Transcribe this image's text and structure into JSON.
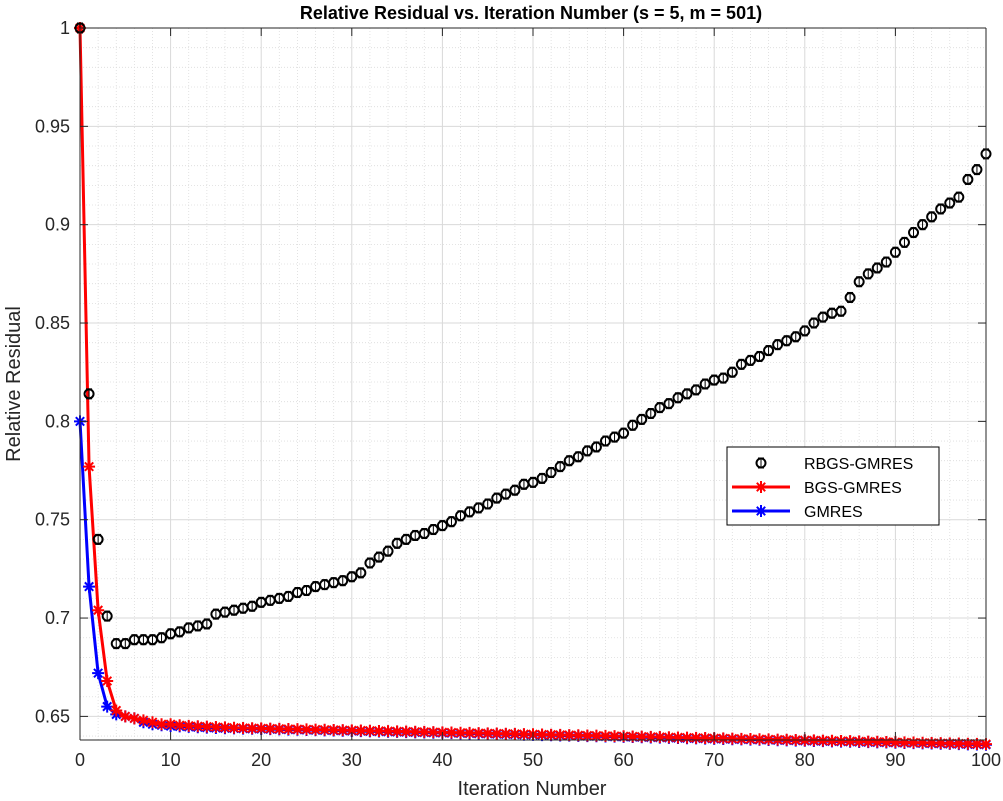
{
  "chart_data": {
    "type": "line",
    "title": "Relative Residual vs. Iteration Number (s = 5, m = 501)",
    "xlabel": "Iteration Number",
    "ylabel": "Relative Residual",
    "xlim": [
      0,
      100
    ],
    "ylim": [
      0.638,
      1.0
    ],
    "x_ticks": [
      0,
      10,
      20,
      30,
      40,
      50,
      60,
      70,
      80,
      90,
      100
    ],
    "x_tick_labels": [
      "0",
      "10",
      "20",
      "30",
      "40",
      "50",
      "60",
      "70",
      "80",
      "90",
      "100"
    ],
    "y_ticks": [
      0.65,
      0.7,
      0.75,
      0.8,
      0.85,
      0.9,
      0.95,
      1.0
    ],
    "y_tick_labels": [
      "0.65",
      "0.7",
      "0.75",
      "0.8",
      "0.85",
      "0.9",
      "0.95",
      "1"
    ],
    "grid": true,
    "legend_position": "center-right",
    "series": [
      {
        "name": "RBGS-GMRES",
        "color": "#000000",
        "style": "errorbar-circle",
        "x": [
          0,
          1,
          2,
          3,
          4,
          5,
          6,
          7,
          8,
          9,
          10,
          11,
          12,
          13,
          14,
          15,
          16,
          17,
          18,
          19,
          20,
          21,
          22,
          23,
          24,
          25,
          26,
          27,
          28,
          29,
          30,
          31,
          32,
          33,
          34,
          35,
          36,
          37,
          38,
          39,
          40,
          41,
          42,
          43,
          44,
          45,
          46,
          47,
          48,
          49,
          50,
          51,
          52,
          53,
          54,
          55,
          56,
          57,
          58,
          59,
          60,
          61,
          62,
          63,
          64,
          65,
          66,
          67,
          68,
          69,
          70,
          71,
          72,
          73,
          74,
          75,
          76,
          77,
          78,
          79,
          80,
          81,
          82,
          83,
          84,
          85,
          86,
          87,
          88,
          89,
          90,
          91,
          92,
          93,
          94,
          95,
          96,
          97,
          98,
          99,
          100
        ],
        "values": [
          1.0,
          0.814,
          0.74,
          0.701,
          0.687,
          0.687,
          0.689,
          0.689,
          0.689,
          0.69,
          0.692,
          0.693,
          0.695,
          0.696,
          0.697,
          0.702,
          0.703,
          0.704,
          0.705,
          0.706,
          0.708,
          0.709,
          0.71,
          0.711,
          0.713,
          0.714,
          0.716,
          0.717,
          0.718,
          0.719,
          0.721,
          0.723,
          0.728,
          0.731,
          0.734,
          0.738,
          0.74,
          0.742,
          0.743,
          0.745,
          0.747,
          0.749,
          0.752,
          0.754,
          0.756,
          0.758,
          0.761,
          0.763,
          0.765,
          0.768,
          0.769,
          0.771,
          0.774,
          0.777,
          0.78,
          0.782,
          0.785,
          0.787,
          0.79,
          0.792,
          0.794,
          0.798,
          0.801,
          0.804,
          0.807,
          0.809,
          0.812,
          0.814,
          0.816,
          0.819,
          0.821,
          0.822,
          0.825,
          0.829,
          0.831,
          0.833,
          0.836,
          0.839,
          0.841,
          0.843,
          0.846,
          0.85,
          0.853,
          0.855,
          0.856,
          0.863,
          0.871,
          0.875,
          0.878,
          0.881,
          0.886,
          0.891,
          0.896,
          0.9,
          0.904,
          0.908,
          0.911,
          0.914,
          0.923,
          0.928,
          0.936
        ]
      },
      {
        "name": "BGS-GMRES",
        "color": "#ff0000",
        "style": "line-star",
        "x": [
          0,
          1,
          2,
          3,
          4,
          5,
          6,
          7,
          8,
          9,
          10,
          11,
          12,
          13,
          14,
          15,
          16,
          17,
          18,
          19,
          20,
          21,
          22,
          23,
          24,
          25,
          26,
          27,
          28,
          29,
          30,
          31,
          32,
          33,
          34,
          35,
          36,
          37,
          38,
          39,
          40,
          41,
          42,
          43,
          44,
          45,
          46,
          47,
          48,
          49,
          50,
          51,
          52,
          53,
          54,
          55,
          56,
          57,
          58,
          59,
          60,
          61,
          62,
          63,
          64,
          65,
          66,
          67,
          68,
          69,
          70,
          71,
          72,
          73,
          74,
          75,
          76,
          77,
          78,
          79,
          80,
          81,
          82,
          83,
          84,
          85,
          86,
          87,
          88,
          89,
          90,
          91,
          92,
          93,
          94,
          95,
          96,
          97,
          98,
          99,
          100
        ],
        "values": [
          1.0,
          0.777,
          0.704,
          0.668,
          0.653,
          0.65,
          0.649,
          0.648,
          0.647,
          0.646,
          0.646,
          0.6455,
          0.6452,
          0.645,
          0.6448,
          0.6446,
          0.6444,
          0.6442,
          0.6441,
          0.644,
          0.6439,
          0.6438,
          0.6437,
          0.6436,
          0.6435,
          0.6434,
          0.6433,
          0.6432,
          0.6431,
          0.643,
          0.6429,
          0.6428,
          0.6427,
          0.6426,
          0.6425,
          0.6424,
          0.6423,
          0.6422,
          0.6421,
          0.642,
          0.6419,
          0.6418,
          0.6417,
          0.6416,
          0.6415,
          0.6414,
          0.6413,
          0.6412,
          0.6411,
          0.641,
          0.6409,
          0.6408,
          0.6407,
          0.6406,
          0.6405,
          0.6404,
          0.6403,
          0.6402,
          0.6401,
          0.64,
          0.6399,
          0.6398,
          0.6397,
          0.6396,
          0.6395,
          0.6394,
          0.6393,
          0.6392,
          0.6391,
          0.639,
          0.6389,
          0.6388,
          0.6387,
          0.6386,
          0.6385,
          0.6384,
          0.6383,
          0.6382,
          0.6381,
          0.638,
          0.6379,
          0.6378,
          0.6377,
          0.6376,
          0.6375,
          0.6374,
          0.6373,
          0.6372,
          0.6371,
          0.637,
          0.6369,
          0.6368,
          0.6367,
          0.6366,
          0.6365,
          0.6364,
          0.6363,
          0.6362,
          0.6361,
          0.636,
          0.6359
        ]
      },
      {
        "name": "GMRES",
        "color": "#0000ff",
        "style": "line-star",
        "x": [
          0,
          1,
          2,
          3,
          4,
          5,
          6,
          7,
          8,
          9,
          10,
          11,
          12,
          13,
          14,
          15,
          16,
          17,
          18,
          19,
          20,
          21,
          22,
          23,
          24,
          25,
          26,
          27,
          28,
          29,
          30,
          31,
          32,
          33,
          34,
          35,
          36,
          37,
          38,
          39,
          40,
          41,
          42,
          43,
          44,
          45,
          46,
          47,
          48,
          49,
          50,
          51,
          52,
          53,
          54,
          55,
          56,
          57,
          58,
          59,
          60,
          61,
          62,
          63,
          64,
          65,
          66,
          67,
          68,
          69,
          70,
          71,
          72,
          73,
          74,
          75,
          76,
          77,
          78,
          79,
          80,
          81,
          82,
          83,
          84,
          85,
          86,
          87,
          88,
          89,
          90,
          91,
          92,
          93,
          94,
          95,
          96,
          97,
          98,
          99,
          100
        ],
        "values": [
          0.8,
          0.716,
          0.672,
          0.655,
          0.651,
          0.65,
          0.649,
          0.647,
          0.646,
          0.6455,
          0.6451,
          0.6449,
          0.6447,
          0.6445,
          0.6443,
          0.6441,
          0.644,
          0.6439,
          0.6438,
          0.6437,
          0.6436,
          0.6435,
          0.6434,
          0.6433,
          0.6432,
          0.6431,
          0.643,
          0.6429,
          0.6428,
          0.6427,
          0.6426,
          0.6425,
          0.6424,
          0.6423,
          0.6422,
          0.6421,
          0.642,
          0.6419,
          0.6418,
          0.6417,
          0.6416,
          0.6415,
          0.6414,
          0.6413,
          0.6412,
          0.6411,
          0.641,
          0.6409,
          0.6408,
          0.6407,
          0.6406,
          0.6405,
          0.6404,
          0.6403,
          0.6402,
          0.6401,
          0.64,
          0.6399,
          0.6398,
          0.6397,
          0.6396,
          0.6395,
          0.6394,
          0.6393,
          0.6392,
          0.6391,
          0.639,
          0.6389,
          0.6388,
          0.6387,
          0.6386,
          0.6385,
          0.6384,
          0.6383,
          0.6382,
          0.6381,
          0.638,
          0.6379,
          0.6378,
          0.6377,
          0.6376,
          0.6375,
          0.6374,
          0.6373,
          0.6372,
          0.6371,
          0.637,
          0.6369,
          0.6368,
          0.6367,
          0.6366,
          0.6365,
          0.6364,
          0.6363,
          0.6362,
          0.6361,
          0.636,
          0.6359,
          0.6358,
          0.6357,
          0.6356
        ]
      }
    ]
  }
}
